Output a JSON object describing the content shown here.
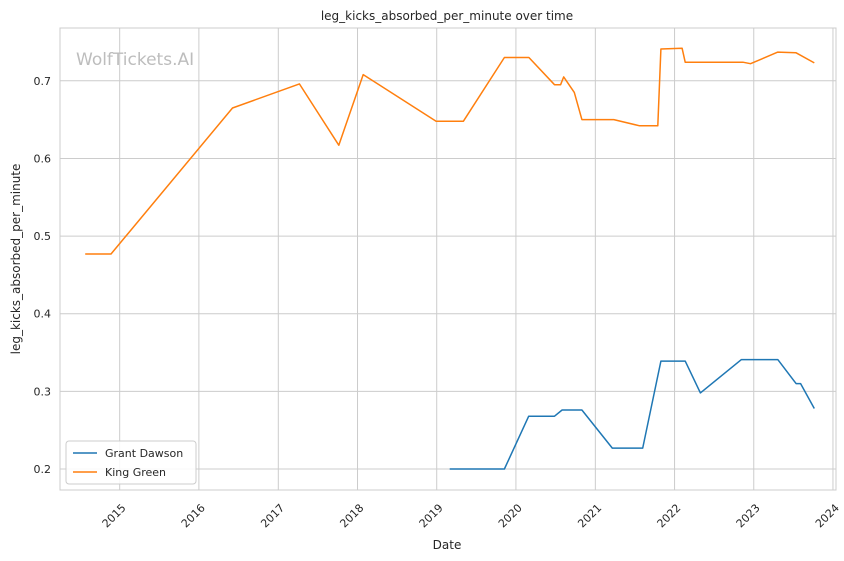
{
  "chart_data": {
    "type": "line",
    "title": "leg_kicks_absorbed_per_minute over time",
    "xlabel": "Date",
    "ylabel": "leg_kicks_absorbed_per_minute",
    "watermark": "WolfTickets.AI",
    "xlim": [
      "2014-04-01",
      "2024-01-15"
    ],
    "ylim": [
      0.173,
      0.768
    ],
    "x_ticks": [
      "2015",
      "2016",
      "2017",
      "2018",
      "2019",
      "2020",
      "2021",
      "2022",
      "2023",
      "2024"
    ],
    "y_ticks": [
      0.2,
      0.3,
      0.4,
      0.5,
      0.6,
      0.7
    ],
    "y_tick_labels": [
      "0.2",
      "0.3",
      "0.4",
      "0.5",
      "0.6",
      "0.7"
    ],
    "grid": true,
    "legend_position": "lower-left",
    "series": [
      {
        "name": "Grant Dawson",
        "color": "#1f77b4",
        "points": [
          [
            "2019-03-02",
            0.2
          ],
          [
            "2019-11-09",
            0.2
          ],
          [
            "2020-02-29",
            0.268
          ],
          [
            "2020-06-27",
            0.268
          ],
          [
            "2020-08-01",
            0.276
          ],
          [
            "2020-10-31",
            0.276
          ],
          [
            "2021-03-20",
            0.227
          ],
          [
            "2021-08-07",
            0.227
          ],
          [
            "2021-10-30",
            0.339
          ],
          [
            "2022-02-19",
            0.339
          ],
          [
            "2022-04-30",
            0.298
          ],
          [
            "2022-11-05",
            0.341
          ],
          [
            "2023-04-22",
            0.341
          ],
          [
            "2023-07-15",
            0.31
          ],
          [
            "2023-08-05",
            0.31
          ],
          [
            "2023-10-07",
            0.278
          ]
        ]
      },
      {
        "name": "King Green",
        "color": "#ff7f0e",
        "points": [
          [
            "2014-07-26",
            0.477
          ],
          [
            "2014-11-22",
            0.477
          ],
          [
            "2016-06-04",
            0.665
          ],
          [
            "2017-04-08",
            0.696
          ],
          [
            "2017-10-07",
            0.617
          ],
          [
            "2018-01-27",
            0.708
          ],
          [
            "2018-12-29",
            0.648
          ],
          [
            "2019-05-04",
            0.648
          ],
          [
            "2019-11-09",
            0.73
          ],
          [
            "2020-03-01",
            0.73
          ],
          [
            "2020-06-27",
            0.695
          ],
          [
            "2020-07-25",
            0.695
          ],
          [
            "2020-08-08",
            0.705
          ],
          [
            "2020-09-26",
            0.685
          ],
          [
            "2020-10-31",
            0.65
          ],
          [
            "2021-03-27",
            0.65
          ],
          [
            "2021-07-24",
            0.642
          ],
          [
            "2021-10-16",
            0.642
          ],
          [
            "2021-10-30",
            0.741
          ],
          [
            "2022-02-05",
            0.742
          ],
          [
            "2022-02-19",
            0.724
          ],
          [
            "2022-11-12",
            0.724
          ],
          [
            "2022-12-17",
            0.722
          ],
          [
            "2023-04-22",
            0.737
          ],
          [
            "2023-07-15",
            0.736
          ],
          [
            "2023-10-07",
            0.723
          ]
        ]
      }
    ]
  }
}
